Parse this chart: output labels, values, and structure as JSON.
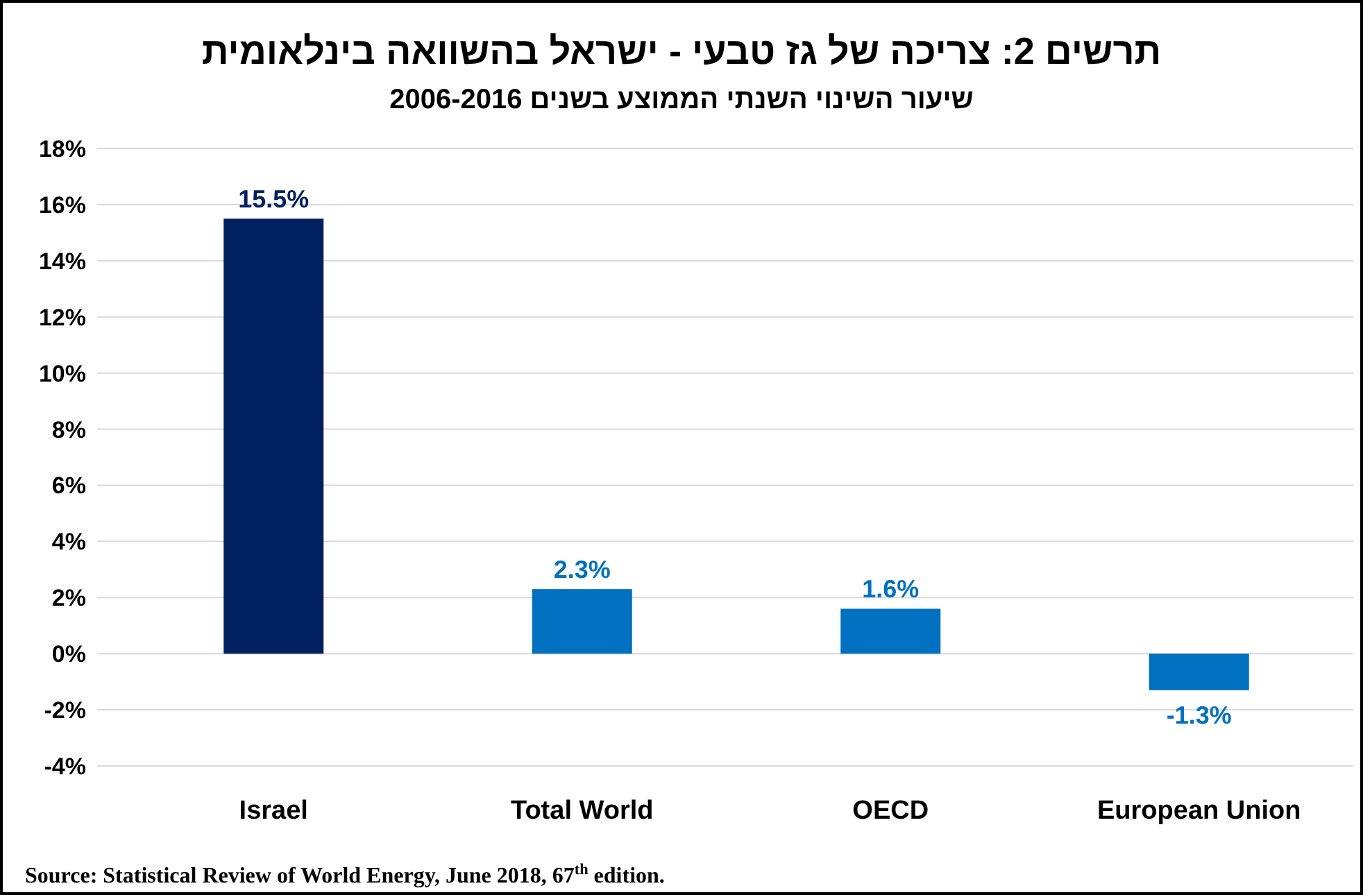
{
  "chart_data": {
    "type": "bar",
    "title": "תרשים 2: צריכה של גז טבעי - ישראל בהשוואה בינלאומית",
    "subtitle": "שיעור השינוי השנתי הממוצע בשנים 2006-2016",
    "categories": [
      "Israel",
      "Total World",
      "OECD",
      "European Union"
    ],
    "values": [
      15.5,
      2.3,
      1.6,
      -1.3
    ],
    "colors": [
      "#002060",
      "#0070c0",
      "#0070c0",
      "#0070c0"
    ],
    "value_labels": [
      "15.5%",
      "2.3%",
      "1.6%",
      "-1.3%"
    ],
    "ylim": [
      -4,
      18
    ],
    "yticks": [
      {
        "value": -4,
        "label": "-4%"
      },
      {
        "value": -2,
        "label": "-2%"
      },
      {
        "value": 0,
        "label": "0%"
      },
      {
        "value": 2,
        "label": "2%"
      },
      {
        "value": 4,
        "label": "4%"
      },
      {
        "value": 6,
        "label": "6%"
      },
      {
        "value": 8,
        "label": "8%"
      },
      {
        "value": 10,
        "label": "10%"
      },
      {
        "value": 12,
        "label": "12%"
      },
      {
        "value": 14,
        "label": "14%"
      },
      {
        "value": 16,
        "label": "16%"
      },
      {
        "value": 18,
        "label": "18%"
      }
    ],
    "grid": "y",
    "annotations": [
      "Source: Statistical Review of World Energy, June 2018, 67$^{th}$ edition."
    ]
  }
}
